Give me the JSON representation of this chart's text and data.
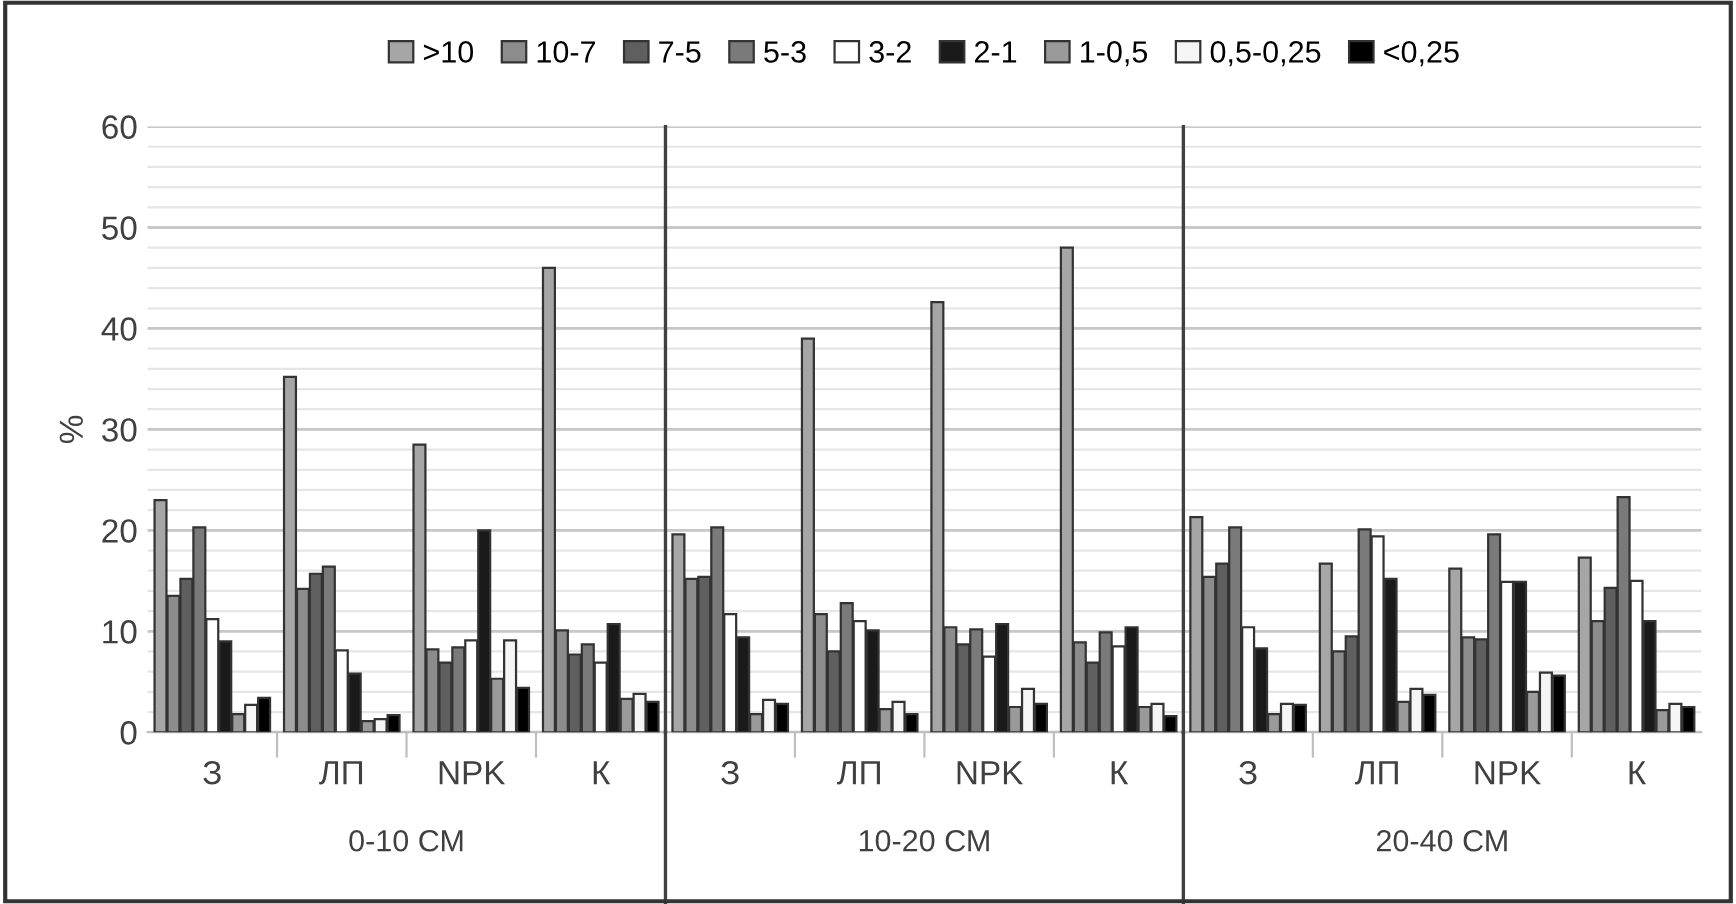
{
  "chart_data": {
    "type": "bar",
    "ylabel": "%",
    "categories": [
      "З",
      "ЛП",
      "NPK",
      "К",
      "З",
      "ЛП",
      "NPK",
      "К",
      "З",
      "ЛП",
      "NPK",
      "К"
    ],
    "annotations": [
      "0-10 СМ",
      "10-20 СМ",
      "20-40 СМ"
    ],
    "series": [
      {
        "name": ">10",
        "color": "#a6a6a6",
        "values": [
          23,
          35.2,
          28.5,
          46,
          19.6,
          39,
          42.6,
          48,
          21.3,
          16.7,
          16.2,
          17.3
        ]
      },
      {
        "name": "10-7",
        "color": "#8c8c8c",
        "values": [
          13.5,
          14.2,
          8.2,
          10.1,
          15.2,
          11.7,
          10.4,
          8.9,
          15.4,
          8.0,
          9.4,
          11.0
        ]
      },
      {
        "name": "7-5",
        "color": "#5f5f5f",
        "values": [
          15.2,
          15.7,
          6.9,
          7.7,
          15.4,
          8.0,
          8.7,
          6.9,
          16.7,
          9.5,
          9.2,
          14.3
        ]
      },
      {
        "name": "5-3",
        "color": "#7a7a7a",
        "values": [
          20.3,
          16.4,
          8.4,
          8.7,
          20.3,
          12.8,
          10.2,
          9.9,
          20.3,
          20.1,
          19.6,
          23.3
        ]
      },
      {
        "name": "3-2",
        "color": "#ffffff",
        "values": [
          11.2,
          8.1,
          9.1,
          6.9,
          11.7,
          11,
          7.5,
          8.5,
          10.4,
          19.4,
          14.9,
          15.0
        ]
      },
      {
        "name": "2-1",
        "color": "#1a1a1a",
        "values": [
          9,
          5.8,
          20,
          10.7,
          9.4,
          10.1,
          10.7,
          10.4,
          8.3,
          15.2,
          14.9,
          11.0
        ]
      },
      {
        "name": "1-0,5",
        "color": "#9a9a9a",
        "values": [
          1.8,
          1.1,
          5.3,
          3.3,
          1.8,
          2.3,
          2.5,
          2.5,
          1.8,
          3.0,
          4.0,
          2.2
        ]
      },
      {
        "name": "0,5-0,25",
        "color": "#f5f5f5",
        "values": [
          2.7,
          1.3,
          9.1,
          3.8,
          3.2,
          3.0,
          4.3,
          2.8,
          2.8,
          4.3,
          5.9,
          2.8
        ]
      },
      {
        "name": "<0,25",
        "color": "#000000",
        "values": [
          3.4,
          1.7,
          4.4,
          3.0,
          2.8,
          1.8,
          2.8,
          1.6,
          2.7,
          3.7,
          5.6,
          2.5
        ]
      }
    ],
    "ylim": [
      0,
      60
    ],
    "yticks": [
      0,
      10,
      20,
      30,
      40,
      50,
      60
    ],
    "grid": "y",
    "legend": "top"
  }
}
